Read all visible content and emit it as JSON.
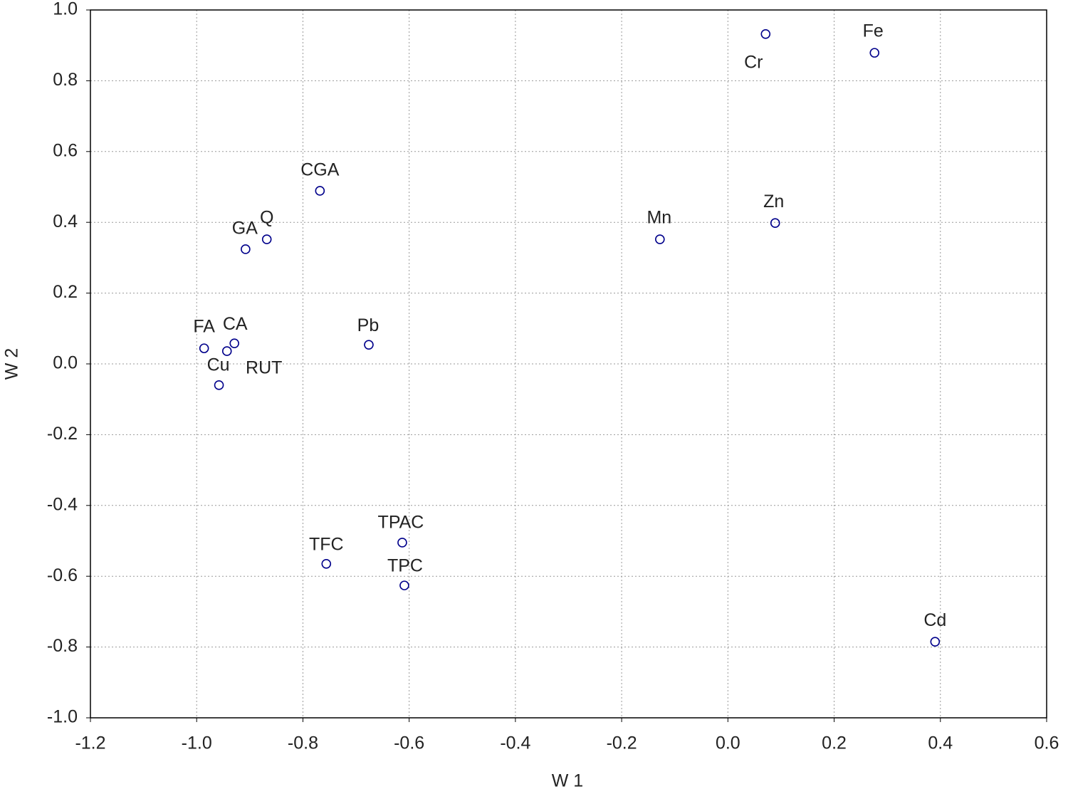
{
  "chart_data": {
    "type": "scatter",
    "x_label": "W 1",
    "y_label": "W 2",
    "labels": [
      "Cr",
      "Fe",
      "Zn",
      "Mn",
      "Cd",
      "CGA",
      "Q",
      "GA",
      "FA",
      "CA",
      "RUT",
      "Cu",
      "Pb",
      "TFC",
      "TPAC",
      "TPC"
    ],
    "x": [
      0.071,
      0.276,
      0.089,
      -0.128,
      0.39,
      -0.768,
      -0.868,
      -0.908,
      -0.986,
      -0.929,
      -0.943,
      -0.958,
      -0.676,
      -0.756,
      -0.613,
      -0.609
    ],
    "y": [
      0.932,
      0.879,
      0.398,
      0.352,
      -0.785,
      0.489,
      0.352,
      0.324,
      0.044,
      0.058,
      0.036,
      -0.06,
      0.054,
      -0.565,
      -0.505,
      -0.626
    ],
    "color": "#00008b",
    "xlim": [
      -1.2,
      0.6
    ],
    "xticks": [
      -1.2,
      {
        "value": -1,
        "label": "-1.0"
      },
      -0.8,
      -0.6,
      -0.4,
      -0.2,
      {
        "value": 0,
        "label": "0.0"
      },
      0.2,
      0.4,
      0.6
    ],
    "ylim": [
      -1,
      1
    ],
    "yticks": [
      {
        "value": -1,
        "label": "-1.0"
      },
      -0.8,
      -0.6,
      -0.4,
      -0.2,
      {
        "value": 0,
        "label": "0.0"
      },
      0.2,
      0.4,
      0.6,
      0.8,
      {
        "value": 1,
        "label": "1.0"
      }
    ],
    "grid": true
  }
}
